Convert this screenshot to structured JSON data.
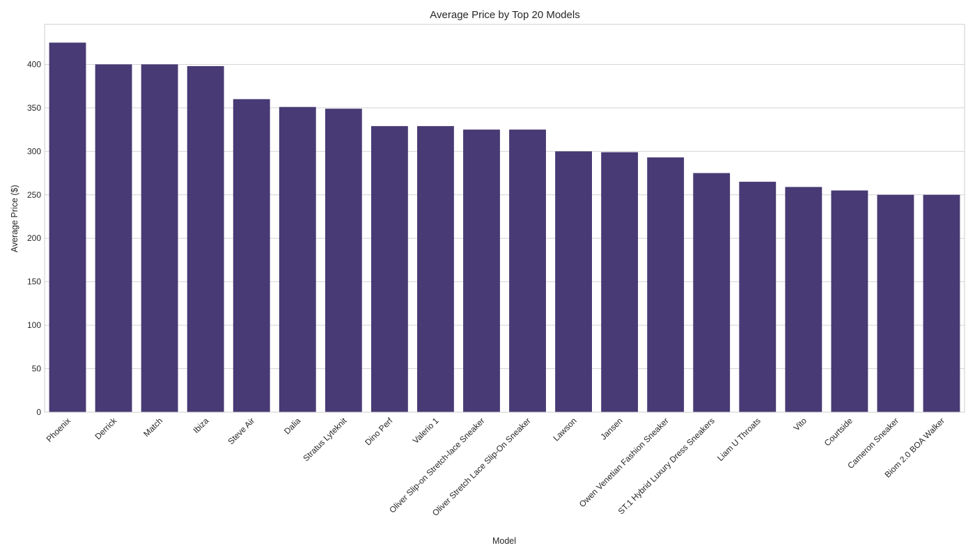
{
  "chart_data": {
    "type": "bar",
    "title": "Average Price by Top 20 Models",
    "xlabel": "Model",
    "ylabel": "Average Price ($)",
    "categories": [
      "Phoenix",
      "Derrick",
      "Match",
      "Ibiza",
      "Steve Air",
      "Dalia",
      "Stratus Lyteknit",
      "Dino Perf",
      "Valerio 1",
      "Oliver Slip-on Stretch-lace Sneaker",
      "Oliver Stretch Lace Slip-On Sneaker",
      "Lawson",
      "Jansen",
      "Owen Venetian Fashion Sneaker",
      "ST.1 Hybrid Luxury Dress Sneakers",
      "Liam U Throats",
      "Vito",
      "Courtside",
      "Cameron Sneaker",
      "Biom 2.0 BOA Walker"
    ],
    "values": [
      425,
      400,
      400,
      398,
      360,
      351,
      349,
      329,
      329,
      325,
      325,
      300,
      299,
      293,
      275,
      265,
      259,
      255,
      250,
      250
    ],
    "ylim": [
      0,
      446
    ],
    "yticks": [
      0,
      50,
      100,
      150,
      200,
      250,
      300,
      350,
      400
    ],
    "grid": true,
    "bar_color": "#483a74",
    "grid_color": "#d4d4d4"
  }
}
